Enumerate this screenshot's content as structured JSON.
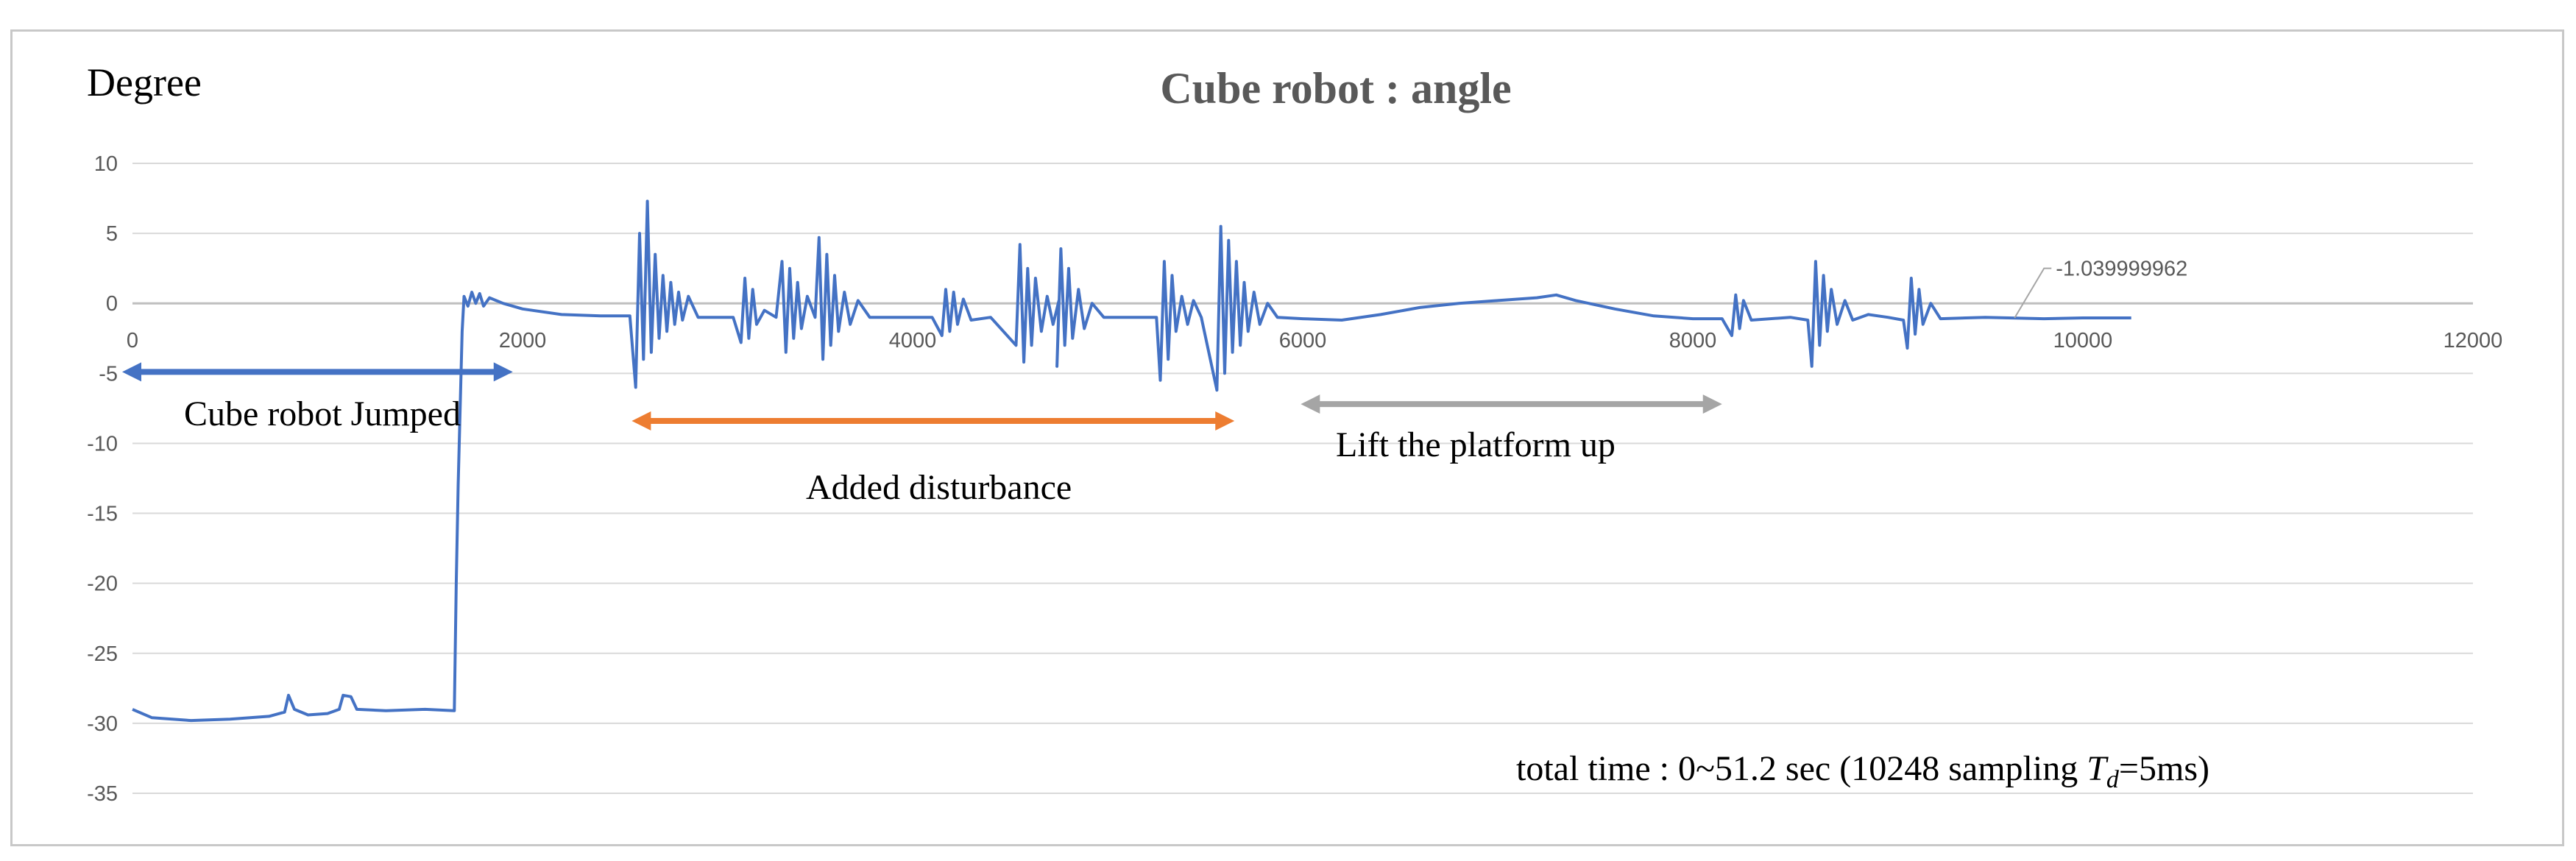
{
  "chart_data": {
    "type": "line",
    "title": "Cube robot : angle",
    "ylabel": "Degree",
    "xlim": [
      0,
      12000
    ],
    "ylim": [
      -35,
      10
    ],
    "x_ticks": [
      "0",
      "2000",
      "4000",
      "6000",
      "8000",
      "10000",
      "12000"
    ],
    "y_ticks": [
      "10",
      "5",
      "0",
      "-5",
      "-10",
      "-15",
      "-20",
      "-25",
      "-30",
      "-35"
    ],
    "grid": "horizontal",
    "series": [
      {
        "color": "#4472c4",
        "points": [
          [
            0,
            -29.0
          ],
          [
            100,
            -29.6
          ],
          [
            300,
            -29.8
          ],
          [
            500,
            -29.7
          ],
          [
            700,
            -29.5
          ],
          [
            780,
            -29.2
          ],
          [
            800,
            -28.0
          ],
          [
            830,
            -29.0
          ],
          [
            900,
            -29.4
          ],
          [
            1000,
            -29.3
          ],
          [
            1060,
            -29.0
          ],
          [
            1080,
            -28.0
          ],
          [
            1120,
            -28.1
          ],
          [
            1150,
            -29.0
          ],
          [
            1300,
            -29.1
          ],
          [
            1500,
            -29.0
          ],
          [
            1650,
            -29.1
          ],
          [
            1660,
            -20.0
          ],
          [
            1670,
            -13.0
          ],
          [
            1690,
            -2.0
          ],
          [
            1700,
            0.5
          ],
          [
            1720,
            -0.2
          ],
          [
            1740,
            0.8
          ],
          [
            1760,
            0.0
          ],
          [
            1780,
            0.7
          ],
          [
            1800,
            -0.2
          ],
          [
            1830,
            0.4
          ],
          [
            1900,
            0.0
          ],
          [
            2000,
            -0.4
          ],
          [
            2200,
            -0.8
          ],
          [
            2400,
            -0.9
          ],
          [
            2550,
            -0.9
          ],
          [
            2580,
            -6.0
          ],
          [
            2600,
            5.0
          ],
          [
            2620,
            -4.0
          ],
          [
            2640,
            7.3
          ],
          [
            2660,
            -3.5
          ],
          [
            2680,
            3.5
          ],
          [
            2700,
            -2.5
          ],
          [
            2720,
            2.0
          ],
          [
            2740,
            -2.0
          ],
          [
            2760,
            1.5
          ],
          [
            2780,
            -1.5
          ],
          [
            2800,
            0.8
          ],
          [
            2820,
            -1.2
          ],
          [
            2850,
            0.5
          ],
          [
            2900,
            -1.0
          ],
          [
            3000,
            -1.0
          ],
          [
            3080,
            -1.0
          ],
          [
            3120,
            -2.8
          ],
          [
            3140,
            1.8
          ],
          [
            3160,
            -2.5
          ],
          [
            3180,
            1.0
          ],
          [
            3200,
            -1.5
          ],
          [
            3240,
            -0.5
          ],
          [
            3300,
            -1.0
          ],
          [
            3330,
            3.0
          ],
          [
            3350,
            -3.5
          ],
          [
            3370,
            2.5
          ],
          [
            3390,
            -2.5
          ],
          [
            3410,
            1.5
          ],
          [
            3430,
            -1.8
          ],
          [
            3460,
            0.5
          ],
          [
            3500,
            -1.0
          ],
          [
            3520,
            4.7
          ],
          [
            3540,
            -4.0
          ],
          [
            3560,
            3.5
          ],
          [
            3580,
            -3.0
          ],
          [
            3600,
            2.0
          ],
          [
            3620,
            -2.0
          ],
          [
            3650,
            0.8
          ],
          [
            3680,
            -1.5
          ],
          [
            3720,
            0.2
          ],
          [
            3780,
            -1.0
          ],
          [
            3900,
            -1.0
          ],
          [
            4100,
            -1.0
          ],
          [
            4150,
            -2.3
          ],
          [
            4170,
            1.0
          ],
          [
            4190,
            -2.0
          ],
          [
            4210,
            0.8
          ],
          [
            4230,
            -1.5
          ],
          [
            4260,
            0.3
          ],
          [
            4300,
            -1.2
          ],
          [
            4400,
            -1.0
          ],
          [
            4530,
            -3.0
          ],
          [
            4550,
            4.2
          ],
          [
            4570,
            -4.2
          ],
          [
            4590,
            2.5
          ],
          [
            4610,
            -3.0
          ],
          [
            4630,
            1.8
          ],
          [
            4660,
            -2.0
          ],
          [
            4690,
            0.5
          ],
          [
            4720,
            -1.5
          ],
          [
            4750,
            0.2
          ],
          [
            4740,
            -4.5
          ],
          [
            4760,
            3.9
          ],
          [
            4780,
            -3.0
          ],
          [
            4800,
            2.5
          ],
          [
            4820,
            -2.5
          ],
          [
            4850,
            1.0
          ],
          [
            4880,
            -1.8
          ],
          [
            4920,
            0.0
          ],
          [
            4980,
            -1.0
          ],
          [
            5250,
            -1.0
          ],
          [
            5270,
            -5.5
          ],
          [
            5290,
            3.0
          ],
          [
            5310,
            -4.0
          ],
          [
            5330,
            2.0
          ],
          [
            5350,
            -2.0
          ],
          [
            5380,
            0.5
          ],
          [
            5410,
            -1.5
          ],
          [
            5440,
            0.2
          ],
          [
            5480,
            -1.0
          ],
          [
            5560,
            -6.2
          ],
          [
            5580,
            5.5
          ],
          [
            5600,
            -5.0
          ],
          [
            5620,
            4.5
          ],
          [
            5640,
            -3.5
          ],
          [
            5660,
            3.0
          ],
          [
            5680,
            -3.0
          ],
          [
            5700,
            1.5
          ],
          [
            5720,
            -2.0
          ],
          [
            5750,
            0.8
          ],
          [
            5780,
            -1.5
          ],
          [
            5820,
            0.0
          ],
          [
            5870,
            -1.0
          ],
          [
            6000,
            -1.1
          ],
          [
            6200,
            -1.2
          ],
          [
            6400,
            -0.8
          ],
          [
            6600,
            -0.3
          ],
          [
            6800,
            0.0
          ],
          [
            7000,
            0.2
          ],
          [
            7200,
            0.4
          ],
          [
            7300,
            0.6
          ],
          [
            7400,
            0.2
          ],
          [
            7600,
            -0.4
          ],
          [
            7800,
            -0.9
          ],
          [
            8000,
            -1.1
          ],
          [
            8150,
            -1.1
          ],
          [
            8200,
            -2.3
          ],
          [
            8220,
            0.6
          ],
          [
            8240,
            -1.8
          ],
          [
            8260,
            0.2
          ],
          [
            8300,
            -1.2
          ],
          [
            8500,
            -1.0
          ],
          [
            8590,
            -1.2
          ],
          [
            8610,
            -4.5
          ],
          [
            8630,
            3.0
          ],
          [
            8650,
            -3.0
          ],
          [
            8670,
            2.0
          ],
          [
            8690,
            -2.0
          ],
          [
            8710,
            1.0
          ],
          [
            8740,
            -1.5
          ],
          [
            8780,
            0.2
          ],
          [
            8820,
            -1.2
          ],
          [
            8900,
            -0.8
          ],
          [
            9000,
            -1.0
          ],
          [
            9080,
            -1.2
          ],
          [
            9100,
            -3.2
          ],
          [
            9120,
            1.8
          ],
          [
            9140,
            -2.2
          ],
          [
            9160,
            1.0
          ],
          [
            9180,
            -1.5
          ],
          [
            9220,
            0.0
          ],
          [
            9270,
            -1.1
          ],
          [
            9500,
            -1.0
          ],
          [
            9800,
            -1.1
          ],
          [
            10000,
            -1.04
          ],
          [
            10248,
            -1.04
          ]
        ]
      }
    ],
    "data_label": {
      "x": 9650,
      "y": -1.04,
      "text": "-1.039999962"
    },
    "annotations": [
      {
        "text": "Cube robot Jumped",
        "arrow_from": 0,
        "arrow_to": 1950,
        "color": "#4472c4"
      },
      {
        "text": "Added disturbance",
        "arrow_from": 2560,
        "arrow_to": 5650,
        "color": "#ed7d31"
      },
      {
        "text": "Lift the platform up",
        "arrow_from": 5990,
        "arrow_to": 8150,
        "color": "#a5a5a5"
      }
    ],
    "footnote": {
      "main": "total time : 0~51.2 sec (10248 sampling ",
      "symbol": "T",
      "subscript": "d",
      "tail": "=5ms)"
    }
  }
}
